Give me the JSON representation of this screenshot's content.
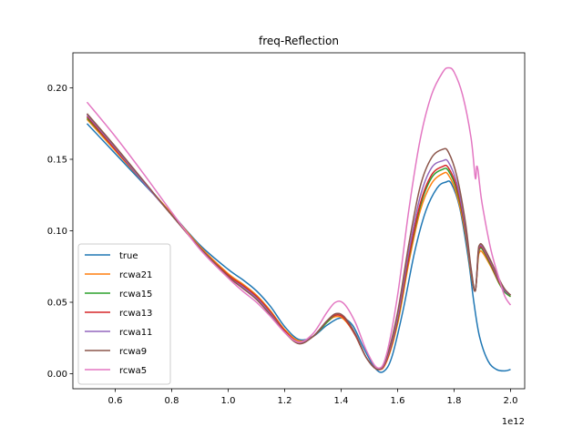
{
  "chart_data": {
    "type": "line",
    "title": "freq-Reflection",
    "xlabel": "",
    "ylabel": "",
    "x_offset_label": "1e12",
    "xlim": [
      0.45,
      2.05
    ],
    "ylim": [
      -0.0105,
      0.2245
    ],
    "xticks": [
      0.6,
      0.8,
      1.0,
      1.2,
      1.4,
      1.6,
      1.8,
      2.0
    ],
    "xtick_labels": [
      "0.6",
      "0.8",
      "1.0",
      "1.2",
      "1.4",
      "1.6",
      "1.8",
      "2.0"
    ],
    "yticks": [
      0.0,
      0.05,
      0.1,
      0.15,
      0.2
    ],
    "ytick_labels": [
      "0.00",
      "0.05",
      "0.10",
      "0.15",
      "0.20"
    ],
    "grid": false,
    "legend_position": "lower-left",
    "series": [
      {
        "name": "true",
        "color": "#1f77b4",
        "points": [
          [
            0.5,
            0.175
          ],
          [
            0.6,
            0.154
          ],
          [
            0.7,
            0.133
          ],
          [
            0.8,
            0.112
          ],
          [
            0.9,
            0.09
          ],
          [
            1.0,
            0.073
          ],
          [
            1.05,
            0.066
          ],
          [
            1.1,
            0.058
          ],
          [
            1.15,
            0.047
          ],
          [
            1.2,
            0.033
          ],
          [
            1.25,
            0.024
          ],
          [
            1.3,
            0.026
          ],
          [
            1.35,
            0.034
          ],
          [
            1.4,
            0.039
          ],
          [
            1.44,
            0.034
          ],
          [
            1.48,
            0.018
          ],
          [
            1.52,
            0.004
          ],
          [
            1.55,
            0.0015
          ],
          [
            1.58,
            0.012
          ],
          [
            1.62,
            0.045
          ],
          [
            1.66,
            0.085
          ],
          [
            1.7,
            0.114
          ],
          [
            1.74,
            0.13
          ],
          [
            1.77,
            0.134
          ],
          [
            1.79,
            0.133
          ],
          [
            1.82,
            0.116
          ],
          [
            1.85,
            0.081
          ],
          [
            1.87,
            0.05
          ],
          [
            1.89,
            0.026
          ],
          [
            1.92,
            0.009
          ],
          [
            1.95,
            0.003
          ],
          [
            1.98,
            0.002
          ],
          [
            2.0,
            0.003
          ]
        ]
      },
      {
        "name": "rcwa21",
        "color": "#ff7f0e",
        "points": [
          [
            0.5,
            0.178
          ],
          [
            0.6,
            0.156
          ],
          [
            0.7,
            0.134
          ],
          [
            0.8,
            0.112
          ],
          [
            0.9,
            0.089
          ],
          [
            1.0,
            0.07
          ],
          [
            1.05,
            0.063
          ],
          [
            1.1,
            0.055
          ],
          [
            1.15,
            0.044
          ],
          [
            1.2,
            0.031
          ],
          [
            1.25,
            0.023
          ],
          [
            1.3,
            0.026
          ],
          [
            1.35,
            0.036
          ],
          [
            1.38,
            0.04
          ],
          [
            1.41,
            0.038
          ],
          [
            1.45,
            0.027
          ],
          [
            1.49,
            0.011
          ],
          [
            1.53,
            0.003
          ],
          [
            1.56,
            0.008
          ],
          [
            1.6,
            0.035
          ],
          [
            1.64,
            0.078
          ],
          [
            1.68,
            0.114
          ],
          [
            1.72,
            0.133
          ],
          [
            1.76,
            0.14
          ],
          [
            1.78,
            0.139
          ],
          [
            1.81,
            0.125
          ],
          [
            1.84,
            0.098
          ],
          [
            1.86,
            0.07
          ],
          [
            1.875,
            0.058
          ],
          [
            1.885,
            0.08
          ],
          [
            1.89,
            0.085
          ],
          [
            1.9,
            0.085
          ],
          [
            1.93,
            0.075
          ],
          [
            1.96,
            0.063
          ],
          [
            1.98,
            0.057
          ],
          [
            2.0,
            0.054
          ]
        ]
      },
      {
        "name": "rcwa15",
        "color": "#2ca02c",
        "points": [
          [
            0.5,
            0.179
          ],
          [
            0.6,
            0.157
          ],
          [
            0.7,
            0.134
          ],
          [
            0.8,
            0.111
          ],
          [
            0.9,
            0.088
          ],
          [
            1.0,
            0.069
          ],
          [
            1.05,
            0.062
          ],
          [
            1.1,
            0.054
          ],
          [
            1.15,
            0.043
          ],
          [
            1.2,
            0.03
          ],
          [
            1.25,
            0.022
          ],
          [
            1.3,
            0.026
          ],
          [
            1.35,
            0.036
          ],
          [
            1.38,
            0.041
          ],
          [
            1.41,
            0.039
          ],
          [
            1.45,
            0.027
          ],
          [
            1.49,
            0.011
          ],
          [
            1.53,
            0.003
          ],
          [
            1.56,
            0.009
          ],
          [
            1.6,
            0.037
          ],
          [
            1.64,
            0.081
          ],
          [
            1.68,
            0.117
          ],
          [
            1.72,
            0.137
          ],
          [
            1.76,
            0.143
          ],
          [
            1.78,
            0.142
          ],
          [
            1.81,
            0.128
          ],
          [
            1.84,
            0.1
          ],
          [
            1.86,
            0.071
          ],
          [
            1.875,
            0.058
          ],
          [
            1.885,
            0.082
          ],
          [
            1.89,
            0.087
          ],
          [
            1.9,
            0.087
          ],
          [
            1.93,
            0.076
          ],
          [
            1.96,
            0.063
          ],
          [
            1.98,
            0.057
          ],
          [
            2.0,
            0.054
          ]
        ]
      },
      {
        "name": "rcwa13",
        "color": "#d62728",
        "points": [
          [
            0.5,
            0.18
          ],
          [
            0.6,
            0.157
          ],
          [
            0.7,
            0.134
          ],
          [
            0.8,
            0.111
          ],
          [
            0.9,
            0.088
          ],
          [
            1.0,
            0.069
          ],
          [
            1.05,
            0.062
          ],
          [
            1.1,
            0.054
          ],
          [
            1.15,
            0.043
          ],
          [
            1.2,
            0.03
          ],
          [
            1.25,
            0.022
          ],
          [
            1.3,
            0.026
          ],
          [
            1.35,
            0.037
          ],
          [
            1.38,
            0.041
          ],
          [
            1.41,
            0.039
          ],
          [
            1.45,
            0.027
          ],
          [
            1.49,
            0.011
          ],
          [
            1.53,
            0.003
          ],
          [
            1.56,
            0.009
          ],
          [
            1.6,
            0.038
          ],
          [
            1.64,
            0.082
          ],
          [
            1.68,
            0.119
          ],
          [
            1.72,
            0.139
          ],
          [
            1.76,
            0.145
          ],
          [
            1.78,
            0.144
          ],
          [
            1.81,
            0.13
          ],
          [
            1.84,
            0.101
          ],
          [
            1.86,
            0.072
          ],
          [
            1.875,
            0.058
          ],
          [
            1.885,
            0.083
          ],
          [
            1.89,
            0.088
          ],
          [
            1.9,
            0.088
          ],
          [
            1.93,
            0.077
          ],
          [
            1.96,
            0.064
          ],
          [
            1.98,
            0.058
          ],
          [
            2.0,
            0.055
          ]
        ]
      },
      {
        "name": "rcwa11",
        "color": "#9467bd",
        "points": [
          [
            0.5,
            0.181
          ],
          [
            0.6,
            0.158
          ],
          [
            0.7,
            0.134
          ],
          [
            0.8,
            0.111
          ],
          [
            0.9,
            0.088
          ],
          [
            1.0,
            0.068
          ],
          [
            1.05,
            0.061
          ],
          [
            1.1,
            0.053
          ],
          [
            1.15,
            0.042
          ],
          [
            1.2,
            0.029
          ],
          [
            1.25,
            0.022
          ],
          [
            1.3,
            0.026
          ],
          [
            1.35,
            0.037
          ],
          [
            1.38,
            0.042
          ],
          [
            1.41,
            0.04
          ],
          [
            1.45,
            0.028
          ],
          [
            1.49,
            0.011
          ],
          [
            1.53,
            0.003
          ],
          [
            1.56,
            0.01
          ],
          [
            1.6,
            0.04
          ],
          [
            1.64,
            0.086
          ],
          [
            1.68,
            0.124
          ],
          [
            1.72,
            0.144
          ],
          [
            1.76,
            0.149
          ],
          [
            1.78,
            0.148
          ],
          [
            1.81,
            0.133
          ],
          [
            1.84,
            0.103
          ],
          [
            1.86,
            0.073
          ],
          [
            1.875,
            0.058
          ],
          [
            1.885,
            0.084
          ],
          [
            1.89,
            0.089
          ],
          [
            1.9,
            0.089
          ],
          [
            1.93,
            0.078
          ],
          [
            1.96,
            0.065
          ],
          [
            1.98,
            0.058
          ],
          [
            2.0,
            0.055
          ]
        ]
      },
      {
        "name": "rcwa9",
        "color": "#8c564b",
        "points": [
          [
            0.5,
            0.182
          ],
          [
            0.6,
            0.159
          ],
          [
            0.7,
            0.135
          ],
          [
            0.8,
            0.111
          ],
          [
            0.9,
            0.088
          ],
          [
            1.0,
            0.068
          ],
          [
            1.05,
            0.06
          ],
          [
            1.1,
            0.052
          ],
          [
            1.15,
            0.041
          ],
          [
            1.2,
            0.029
          ],
          [
            1.25,
            0.021
          ],
          [
            1.3,
            0.026
          ],
          [
            1.35,
            0.037
          ],
          [
            1.38,
            0.042
          ],
          [
            1.41,
            0.04
          ],
          [
            1.45,
            0.028
          ],
          [
            1.49,
            0.011
          ],
          [
            1.53,
            0.003
          ],
          [
            1.56,
            0.011
          ],
          [
            1.6,
            0.043
          ],
          [
            1.64,
            0.091
          ],
          [
            1.68,
            0.131
          ],
          [
            1.72,
            0.151
          ],
          [
            1.76,
            0.157
          ],
          [
            1.78,
            0.155
          ],
          [
            1.81,
            0.138
          ],
          [
            1.84,
            0.106
          ],
          [
            1.86,
            0.074
          ],
          [
            1.875,
            0.058
          ],
          [
            1.885,
            0.085
          ],
          [
            1.89,
            0.09
          ],
          [
            1.9,
            0.09
          ],
          [
            1.93,
            0.079
          ],
          [
            1.96,
            0.066
          ],
          [
            1.98,
            0.059
          ],
          [
            2.0,
            0.055
          ]
        ]
      },
      {
        "name": "rcwa5",
        "color": "#e377c2",
        "points": [
          [
            0.5,
            0.19
          ],
          [
            0.6,
            0.166
          ],
          [
            0.7,
            0.14
          ],
          [
            0.8,
            0.113
          ],
          [
            0.9,
            0.087
          ],
          [
            1.0,
            0.067
          ],
          [
            1.05,
            0.058
          ],
          [
            1.1,
            0.05
          ],
          [
            1.15,
            0.04
          ],
          [
            1.2,
            0.029
          ],
          [
            1.25,
            0.022
          ],
          [
            1.3,
            0.028
          ],
          [
            1.35,
            0.043
          ],
          [
            1.38,
            0.05
          ],
          [
            1.41,
            0.049
          ],
          [
            1.45,
            0.036
          ],
          [
            1.49,
            0.016
          ],
          [
            1.53,
            0.004
          ],
          [
            1.56,
            0.013
          ],
          [
            1.6,
            0.055
          ],
          [
            1.64,
            0.115
          ],
          [
            1.68,
            0.164
          ],
          [
            1.72,
            0.195
          ],
          [
            1.76,
            0.211
          ],
          [
            1.78,
            0.214
          ],
          [
            1.8,
            0.211
          ],
          [
            1.83,
            0.195
          ],
          [
            1.86,
            0.165
          ],
          [
            1.875,
            0.137
          ],
          [
            1.88,
            0.145
          ],
          [
            1.885,
            0.142
          ],
          [
            1.89,
            0.133
          ],
          [
            1.9,
            0.118
          ],
          [
            1.93,
            0.087
          ],
          [
            1.96,
            0.066
          ],
          [
            1.98,
            0.054
          ],
          [
            2.0,
            0.048
          ]
        ]
      }
    ]
  }
}
